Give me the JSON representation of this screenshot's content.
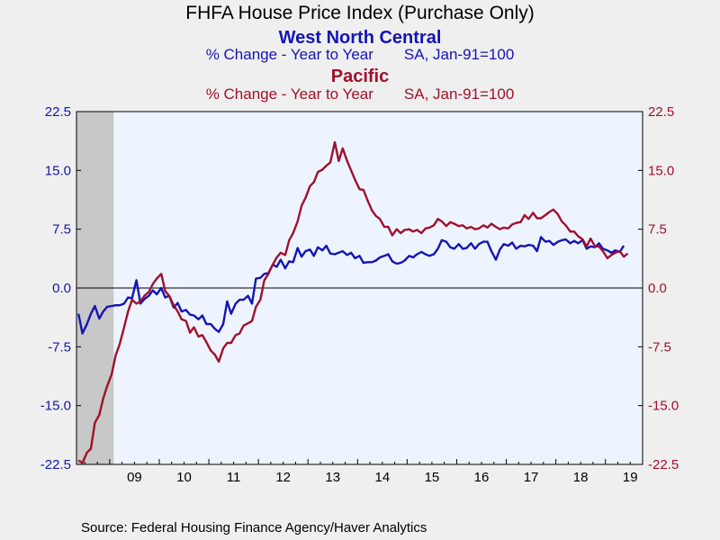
{
  "chart_data": {
    "type": "line",
    "title": "FHFA House Price Index (Purchase Only)",
    "series_titles": [
      {
        "name": "West North Central",
        "subtitle_left": "% Change - Year to Year",
        "subtitle_right": "SA, Jan-91=100",
        "color": "#1414b4"
      },
      {
        "name": "Pacific",
        "subtitle_left": "% Change - Year to Year",
        "subtitle_right": "SA, Jan-91=100",
        "color": "#a0102c"
      }
    ],
    "source": "Source:  Federal Housing Finance Agency/Haver Analytics",
    "ylim": [
      -22.5,
      22.5
    ],
    "yticks": [
      "22.5",
      "15.0",
      "7.5",
      "0.0",
      "-7.5",
      "-15.0",
      "-22.5"
    ],
    "xlim": [
      2008.33,
      2019.75
    ],
    "xticks": [
      "09",
      "10",
      "11",
      "12",
      "13",
      "14",
      "15",
      "16",
      "17",
      "18",
      "19"
    ],
    "recession": {
      "start": 2008.33,
      "end": 2009.08,
      "color": "#c8c8c8"
    },
    "plot_background": "#eef4ff",
    "zero_line": true,
    "series": [
      {
        "name": "West North Central",
        "color": "#1414b4",
        "points": [
          [
            2008.37,
            -3.3
          ],
          [
            2008.45,
            -5.8
          ],
          [
            2008.54,
            -4.6
          ],
          [
            2008.62,
            -3.3
          ],
          [
            2008.7,
            -2.3
          ],
          [
            2008.79,
            -3.9
          ],
          [
            2008.87,
            -3.0
          ],
          [
            2008.95,
            -2.4
          ],
          [
            2009.04,
            -2.3
          ],
          [
            2009.12,
            -2.2
          ],
          [
            2009.2,
            -2.2
          ],
          [
            2009.29,
            -2.0
          ],
          [
            2009.37,
            -1.2
          ],
          [
            2009.45,
            -1.3
          ],
          [
            2009.54,
            1.0
          ],
          [
            2009.62,
            -2.0
          ],
          [
            2009.7,
            -1.4
          ],
          [
            2009.79,
            -1.0
          ],
          [
            2009.87,
            -0.3
          ],
          [
            2009.95,
            -0.8
          ],
          [
            2010.04,
            0.0
          ],
          [
            2010.12,
            -1.2
          ],
          [
            2010.2,
            -1.0
          ],
          [
            2010.29,
            -2.5
          ],
          [
            2010.37,
            -1.9
          ],
          [
            2010.45,
            -3.0
          ],
          [
            2010.54,
            -2.8
          ],
          [
            2010.62,
            -3.4
          ],
          [
            2010.7,
            -3.5
          ],
          [
            2010.79,
            -4.0
          ],
          [
            2010.87,
            -3.5
          ],
          [
            2010.95,
            -4.6
          ],
          [
            2011.04,
            -4.6
          ],
          [
            2011.12,
            -5.2
          ],
          [
            2011.2,
            -5.6
          ],
          [
            2011.29,
            -4.6
          ],
          [
            2011.37,
            -1.7
          ],
          [
            2011.45,
            -3.3
          ],
          [
            2011.54,
            -2.0
          ],
          [
            2011.62,
            -1.5
          ],
          [
            2011.7,
            -1.5
          ],
          [
            2011.79,
            -1.0
          ],
          [
            2011.87,
            -2.0
          ],
          [
            2011.95,
            1.2
          ],
          [
            2012.04,
            1.3
          ],
          [
            2012.12,
            1.8
          ],
          [
            2012.2,
            1.9
          ],
          [
            2012.29,
            3.0
          ],
          [
            2012.37,
            2.7
          ],
          [
            2012.45,
            3.6
          ],
          [
            2012.54,
            2.5
          ],
          [
            2012.62,
            3.4
          ],
          [
            2012.7,
            3.3
          ],
          [
            2012.79,
            5.1
          ],
          [
            2012.87,
            4.0
          ],
          [
            2012.95,
            4.7
          ],
          [
            2013.04,
            4.9
          ],
          [
            2013.12,
            4.1
          ],
          [
            2013.2,
            5.2
          ],
          [
            2013.29,
            4.8
          ],
          [
            2013.37,
            5.4
          ],
          [
            2013.45,
            4.4
          ],
          [
            2013.54,
            4.3
          ],
          [
            2013.62,
            4.5
          ],
          [
            2013.7,
            4.7
          ],
          [
            2013.79,
            4.2
          ],
          [
            2013.87,
            4.5
          ],
          [
            2013.95,
            3.8
          ],
          [
            2014.04,
            4.1
          ],
          [
            2014.12,
            3.2
          ],
          [
            2014.2,
            3.3
          ],
          [
            2014.29,
            3.3
          ],
          [
            2014.37,
            3.5
          ],
          [
            2014.45,
            3.9
          ],
          [
            2014.54,
            4.1
          ],
          [
            2014.62,
            4.3
          ],
          [
            2014.7,
            3.4
          ],
          [
            2014.79,
            3.1
          ],
          [
            2014.87,
            3.2
          ],
          [
            2014.95,
            3.5
          ],
          [
            2015.04,
            4.1
          ],
          [
            2015.12,
            3.9
          ],
          [
            2015.2,
            4.3
          ],
          [
            2015.29,
            4.6
          ],
          [
            2015.37,
            4.3
          ],
          [
            2015.45,
            4.1
          ],
          [
            2015.54,
            4.3
          ],
          [
            2015.62,
            5.0
          ],
          [
            2015.7,
            6.1
          ],
          [
            2015.79,
            5.9
          ],
          [
            2015.87,
            5.2
          ],
          [
            2015.95,
            5.0
          ],
          [
            2016.04,
            5.6
          ],
          [
            2016.12,
            5.0
          ],
          [
            2016.2,
            5.1
          ],
          [
            2016.29,
            5.7
          ],
          [
            2016.37,
            5.0
          ],
          [
            2016.45,
            5.6
          ],
          [
            2016.54,
            5.9
          ],
          [
            2016.62,
            5.9
          ],
          [
            2016.7,
            4.7
          ],
          [
            2016.79,
            3.6
          ],
          [
            2016.87,
            4.9
          ],
          [
            2016.95,
            5.6
          ],
          [
            2017.04,
            5.4
          ],
          [
            2017.12,
            5.8
          ],
          [
            2017.2,
            5.0
          ],
          [
            2017.29,
            5.4
          ],
          [
            2017.37,
            5.3
          ],
          [
            2017.45,
            5.5
          ],
          [
            2017.54,
            5.4
          ],
          [
            2017.62,
            4.7
          ],
          [
            2017.7,
            6.5
          ],
          [
            2017.79,
            5.9
          ],
          [
            2017.87,
            6.0
          ],
          [
            2017.95,
            5.5
          ],
          [
            2018.04,
            5.9
          ],
          [
            2018.12,
            6.1
          ],
          [
            2018.2,
            6.2
          ],
          [
            2018.29,
            5.7
          ],
          [
            2018.37,
            6.0
          ],
          [
            2018.45,
            5.7
          ],
          [
            2018.54,
            6.1
          ],
          [
            2018.62,
            5.0
          ],
          [
            2018.7,
            5.3
          ],
          [
            2018.79,
            5.2
          ],
          [
            2018.87,
            5.7
          ],
          [
            2018.95,
            5.0
          ],
          [
            2019.04,
            4.8
          ],
          [
            2019.12,
            4.5
          ],
          [
            2019.2,
            4.8
          ],
          [
            2019.29,
            4.6
          ],
          [
            2019.37,
            5.4
          ]
        ]
      },
      {
        "name": "Pacific",
        "color": "#a0102c",
        "points": [
          [
            2008.37,
            -22.0
          ],
          [
            2008.45,
            -22.3
          ],
          [
            2008.54,
            -21.0
          ],
          [
            2008.62,
            -20.5
          ],
          [
            2008.7,
            -17.2
          ],
          [
            2008.79,
            -16.2
          ],
          [
            2008.87,
            -14.1
          ],
          [
            2008.95,
            -12.5
          ],
          [
            2009.04,
            -11.0
          ],
          [
            2009.12,
            -8.6
          ],
          [
            2009.2,
            -7.2
          ],
          [
            2009.29,
            -5.0
          ],
          [
            2009.37,
            -3.0
          ],
          [
            2009.45,
            -1.5
          ],
          [
            2009.54,
            -2.0
          ],
          [
            2009.62,
            -1.7
          ],
          [
            2009.7,
            -1.0
          ],
          [
            2009.79,
            -0.5
          ],
          [
            2009.87,
            0.5
          ],
          [
            2009.95,
            1.2
          ],
          [
            2010.04,
            1.8
          ],
          [
            2010.12,
            -0.4
          ],
          [
            2010.2,
            -1.0
          ],
          [
            2010.29,
            -2.2
          ],
          [
            2010.37,
            -3.0
          ],
          [
            2010.45,
            -4.0
          ],
          [
            2010.54,
            -4.2
          ],
          [
            2010.62,
            -5.7
          ],
          [
            2010.7,
            -5.0
          ],
          [
            2010.79,
            -6.2
          ],
          [
            2010.87,
            -6.0
          ],
          [
            2010.95,
            -6.9
          ],
          [
            2011.04,
            -8.0
          ],
          [
            2011.12,
            -8.5
          ],
          [
            2011.2,
            -9.4
          ],
          [
            2011.29,
            -7.7
          ],
          [
            2011.37,
            -7.0
          ],
          [
            2011.45,
            -7.0
          ],
          [
            2011.54,
            -6.0
          ],
          [
            2011.62,
            -5.8
          ],
          [
            2011.7,
            -4.8
          ],
          [
            2011.79,
            -4.5
          ],
          [
            2011.87,
            -4.2
          ],
          [
            2011.95,
            -2.4
          ],
          [
            2012.04,
            -1.5
          ],
          [
            2012.12,
            1.0
          ],
          [
            2012.2,
            1.8
          ],
          [
            2012.29,
            3.0
          ],
          [
            2012.37,
            3.9
          ],
          [
            2012.45,
            4.5
          ],
          [
            2012.54,
            4.2
          ],
          [
            2012.62,
            6.1
          ],
          [
            2012.7,
            7.0
          ],
          [
            2012.79,
            8.5
          ],
          [
            2012.87,
            10.5
          ],
          [
            2012.95,
            11.5
          ],
          [
            2013.04,
            13.0
          ],
          [
            2013.12,
            13.5
          ],
          [
            2013.2,
            14.8
          ],
          [
            2013.29,
            15.1
          ],
          [
            2013.37,
            15.6
          ],
          [
            2013.45,
            16.0
          ],
          [
            2013.54,
            18.6
          ],
          [
            2013.62,
            16.2
          ],
          [
            2013.7,
            17.8
          ],
          [
            2013.79,
            16.2
          ],
          [
            2013.87,
            15.0
          ],
          [
            2013.95,
            13.8
          ],
          [
            2014.04,
            12.6
          ],
          [
            2014.12,
            12.5
          ],
          [
            2014.2,
            11.2
          ],
          [
            2014.29,
            9.9
          ],
          [
            2014.37,
            9.2
          ],
          [
            2014.45,
            8.8
          ],
          [
            2014.54,
            7.8
          ],
          [
            2014.62,
            7.8
          ],
          [
            2014.7,
            6.7
          ],
          [
            2014.79,
            7.5
          ],
          [
            2014.87,
            7.0
          ],
          [
            2014.95,
            7.4
          ],
          [
            2015.04,
            7.5
          ],
          [
            2015.12,
            7.2
          ],
          [
            2015.2,
            7.4
          ],
          [
            2015.29,
            7.0
          ],
          [
            2015.37,
            7.6
          ],
          [
            2015.45,
            7.7
          ],
          [
            2015.54,
            8.0
          ],
          [
            2015.62,
            8.8
          ],
          [
            2015.7,
            8.5
          ],
          [
            2015.79,
            7.9
          ],
          [
            2015.87,
            8.4
          ],
          [
            2015.95,
            8.2
          ],
          [
            2016.04,
            7.9
          ],
          [
            2016.12,
            8.0
          ],
          [
            2016.2,
            7.6
          ],
          [
            2016.29,
            7.8
          ],
          [
            2016.37,
            7.5
          ],
          [
            2016.45,
            7.6
          ],
          [
            2016.54,
            8.0
          ],
          [
            2016.62,
            7.7
          ],
          [
            2016.7,
            8.2
          ],
          [
            2016.79,
            7.8
          ],
          [
            2016.87,
            7.5
          ],
          [
            2016.95,
            7.7
          ],
          [
            2017.04,
            7.6
          ],
          [
            2017.12,
            8.1
          ],
          [
            2017.2,
            8.3
          ],
          [
            2017.29,
            8.4
          ],
          [
            2017.37,
            9.3
          ],
          [
            2017.45,
            8.8
          ],
          [
            2017.54,
            9.6
          ],
          [
            2017.62,
            8.9
          ],
          [
            2017.7,
            8.9
          ],
          [
            2017.79,
            9.3
          ],
          [
            2017.87,
            9.7
          ],
          [
            2017.95,
            10.0
          ],
          [
            2018.04,
            9.4
          ],
          [
            2018.12,
            8.5
          ],
          [
            2018.2,
            8.0
          ],
          [
            2018.29,
            7.2
          ],
          [
            2018.37,
            7.2
          ],
          [
            2018.45,
            6.6
          ],
          [
            2018.54,
            6.2
          ],
          [
            2018.62,
            5.3
          ],
          [
            2018.7,
            6.3
          ],
          [
            2018.79,
            5.3
          ],
          [
            2018.87,
            5.3
          ],
          [
            2018.95,
            4.7
          ],
          [
            2019.04,
            3.8
          ],
          [
            2019.12,
            4.2
          ],
          [
            2019.2,
            4.5
          ],
          [
            2019.29,
            4.7
          ],
          [
            2019.37,
            4.0
          ],
          [
            2019.45,
            4.4
          ]
        ]
      }
    ]
  }
}
